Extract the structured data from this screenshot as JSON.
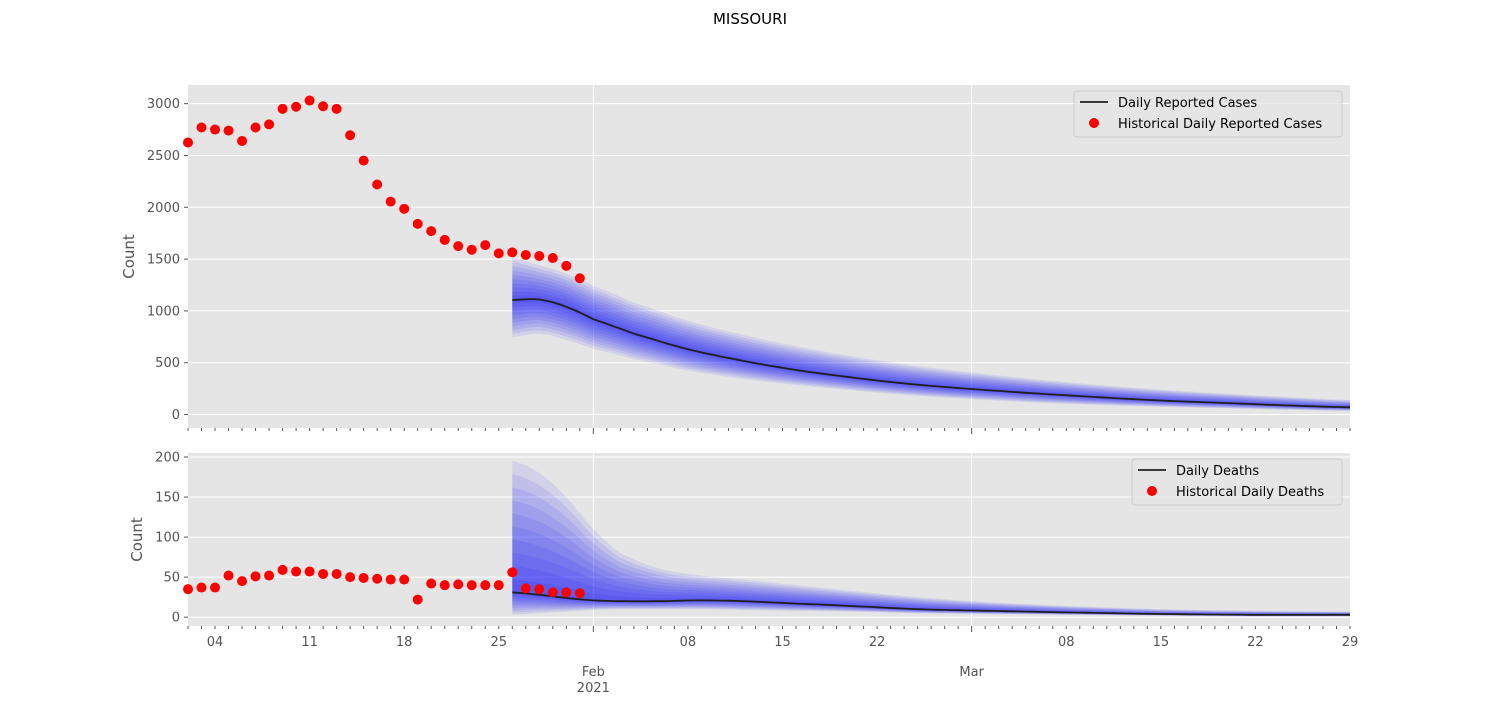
{
  "figure_title": "MISSOURI",
  "colors": {
    "panel_bg": "#e5e5e5",
    "grid": "#ffffff",
    "band": "#0000ff",
    "median": "#1f1f1f",
    "historical": "#ff0000",
    "tick_text": "#555555"
  },
  "x_axis": {
    "minor_ticks": "daily",
    "major_labels": [
      {
        "date": "2021-02-01",
        "label": "Feb",
        "sublabel": "2021"
      },
      {
        "date": "2021-03-01",
        "label": "Mar",
        "sublabel": ""
      }
    ],
    "minor_labels": [
      {
        "date": "2021-01-04",
        "label": "04"
      },
      {
        "date": "2021-01-11",
        "label": "11"
      },
      {
        "date": "2021-01-18",
        "label": "18"
      },
      {
        "date": "2021-01-25",
        "label": "25"
      },
      {
        "date": "2021-02-08",
        "label": "08"
      },
      {
        "date": "2021-02-15",
        "label": "15"
      },
      {
        "date": "2021-02-22",
        "label": "22"
      },
      {
        "date": "2021-03-08",
        "label": "08"
      },
      {
        "date": "2021-03-15",
        "label": "15"
      },
      {
        "date": "2021-03-22",
        "label": "22"
      },
      {
        "date": "2021-03-29",
        "label": "29"
      }
    ]
  },
  "chart_data": [
    {
      "type": "line",
      "title": "",
      "xlabel": "",
      "ylabel": "Count",
      "xlim": [
        "2021-01-02",
        "2021-03-29"
      ],
      "ylim": [
        -130,
        3180
      ],
      "yticks": [
        0,
        500,
        1000,
        1500,
        2000,
        2500,
        3000
      ],
      "grid": true,
      "legend_position": "top-right",
      "legend": [
        "Daily Reported Cases",
        "Historical Daily Reported Cases"
      ],
      "historical": {
        "name": "Historical Daily Reported Cases",
        "x": [
          "2021-01-02",
          "2021-01-03",
          "2021-01-04",
          "2021-01-05",
          "2021-01-06",
          "2021-01-07",
          "2021-01-08",
          "2021-01-09",
          "2021-01-10",
          "2021-01-11",
          "2021-01-12",
          "2021-01-13",
          "2021-01-14",
          "2021-01-15",
          "2021-01-16",
          "2021-01-17",
          "2021-01-18",
          "2021-01-19",
          "2021-01-20",
          "2021-01-21",
          "2021-01-22",
          "2021-01-23",
          "2021-01-24",
          "2021-01-25",
          "2021-01-26",
          "2021-01-27",
          "2021-01-28",
          "2021-01-29",
          "2021-01-30",
          "2021-01-31"
        ],
        "y": [
          2625,
          2770,
          2750,
          2740,
          2640,
          2770,
          2800,
          2950,
          2970,
          3030,
          2975,
          2950,
          2695,
          2450,
          2220,
          2055,
          1985,
          1840,
          1770,
          1685,
          1625,
          1590,
          1635,
          1555,
          1565,
          1540,
          1530,
          1510,
          1435,
          1315
        ]
      },
      "forecast": {
        "name": "Daily Reported Cases",
        "x": [
          "2021-01-26",
          "2021-01-28",
          "2021-01-30",
          "2021-02-01",
          "2021-02-04",
          "2021-02-08",
          "2021-02-12",
          "2021-02-16",
          "2021-02-20",
          "2021-02-24",
          "2021-02-28",
          "2021-03-05",
          "2021-03-10",
          "2021-03-15",
          "2021-03-20",
          "2021-03-25",
          "2021-03-29"
        ],
        "median": [
          1105,
          1110,
          1040,
          920,
          780,
          630,
          520,
          430,
          360,
          300,
          255,
          210,
          170,
          135,
          110,
          85,
          70
        ],
        "lower": [
          745,
          780,
          720,
          635,
          535,
          425,
          345,
          285,
          235,
          190,
          155,
          120,
          95,
          75,
          60,
          45,
          35
        ],
        "upper": [
          1510,
          1440,
          1360,
          1240,
          1080,
          905,
          770,
          660,
          565,
          485,
          420,
          350,
          290,
          240,
          200,
          165,
          140
        ]
      }
    },
    {
      "type": "line",
      "title": "",
      "xlabel": "",
      "ylabel": "Count",
      "xlim": [
        "2021-01-02",
        "2021-03-29"
      ],
      "ylim": [
        -11,
        205
      ],
      "yticks": [
        0,
        50,
        100,
        150,
        200
      ],
      "grid": true,
      "legend_position": "top-right",
      "legend": [
        "Daily Deaths",
        "Historical Daily Deaths"
      ],
      "historical": {
        "name": "Historical Daily Deaths",
        "x": [
          "2021-01-02",
          "2021-01-03",
          "2021-01-04",
          "2021-01-05",
          "2021-01-06",
          "2021-01-07",
          "2021-01-08",
          "2021-01-09",
          "2021-01-10",
          "2021-01-11",
          "2021-01-12",
          "2021-01-13",
          "2021-01-14",
          "2021-01-15",
          "2021-01-16",
          "2021-01-17",
          "2021-01-18",
          "2021-01-19",
          "2021-01-20",
          "2021-01-21",
          "2021-01-22",
          "2021-01-23",
          "2021-01-24",
          "2021-01-25",
          "2021-01-26",
          "2021-01-27",
          "2021-01-28",
          "2021-01-29",
          "2021-01-30",
          "2021-01-31"
        ],
        "y": [
          35,
          37,
          37,
          52,
          45,
          51,
          52,
          59,
          57,
          57,
          54,
          54,
          50,
          49,
          48,
          47,
          47,
          22,
          42,
          40,
          41,
          40,
          40,
          40,
          56,
          36,
          35,
          31,
          31,
          30
        ]
      },
      "forecast": {
        "name": "Daily Deaths",
        "x": [
          "2021-01-26",
          "2021-01-28",
          "2021-01-30",
          "2021-02-01",
          "2021-02-03",
          "2021-02-06",
          "2021-02-09",
          "2021-02-12",
          "2021-02-16",
          "2021-02-20",
          "2021-02-25",
          "2021-03-02",
          "2021-03-08",
          "2021-03-15",
          "2021-03-22",
          "2021-03-29"
        ],
        "median": [
          31,
          28,
          24,
          21,
          20,
          20,
          21,
          20,
          17,
          14,
          10,
          8,
          6,
          4,
          3,
          3
        ],
        "lower": [
          3,
          5,
          7,
          9,
          10,
          10,
          10,
          9,
          8,
          7,
          5,
          4,
          3,
          2,
          1,
          1
        ],
        "upper": [
          195,
          180,
          150,
          110,
          80,
          60,
          52,
          47,
          40,
          33,
          25,
          19,
          14,
          10,
          8,
          7
        ]
      }
    }
  ]
}
